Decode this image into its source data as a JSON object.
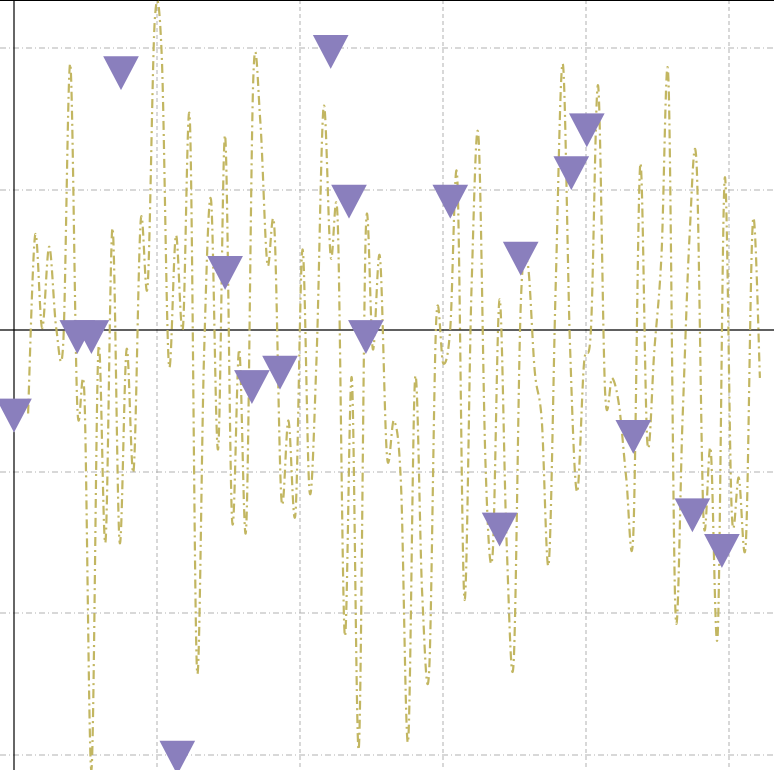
{
  "chart_data": {
    "type": "line",
    "title": "",
    "xlabel": "",
    "ylabel": "",
    "xlim": [
      -0.1,
      5.3
    ],
    "ylim": [
      -3.05,
      2.35
    ],
    "grid": true,
    "legend": "none",
    "series": [
      {
        "style": "dash-dot line",
        "color": "#c2b661",
        "x": [
          0,
          0.05,
          0.1,
          0.15,
          0.2,
          0.25,
          0.3,
          0.35,
          0.4,
          0.45,
          0.5,
          0.55,
          0.6,
          0.65,
          0.7,
          0.75,
          0.8,
          0.85,
          0.9,
          0.95,
          1.0,
          1.05,
          1.1,
          1.15,
          1.2,
          1.25,
          1.3,
          1.35,
          1.4,
          1.45,
          1.5,
          1.55,
          1.6,
          1.65,
          1.7,
          1.75,
          1.8,
          1.85,
          1.9,
          1.95,
          2.0,
          2.05,
          2.1,
          2.15,
          2.2,
          2.25,
          2.3,
          2.35,
          2.4,
          2.45,
          2.5,
          2.55,
          2.6,
          2.65,
          2.7,
          2.75,
          2.8,
          2.85,
          2.9,
          2.95,
          3.0,
          3.05,
          3.1,
          3.15,
          3.2,
          3.25,
          3.3,
          3.35,
          3.4,
          3.45,
          3.5,
          3.55,
          3.6,
          3.65,
          3.7,
          3.75,
          3.8,
          3.85,
          3.9,
          3.95,
          4.0,
          4.05,
          4.1,
          4.15,
          4.2,
          4.25,
          4.3,
          4.35,
          4.4,
          4.45,
          4.5,
          4.55,
          4.6,
          4.65,
          4.7,
          4.75,
          4.8,
          4.85,
          4.9,
          4.95,
          5.0,
          5.05,
          5.1,
          5.15,
          5.2
        ],
        "y": [
          -0.55,
          0.7,
          0.05,
          0.62,
          0.05,
          -0.05,
          1.9,
          -0.5,
          -0.42,
          -3.05,
          -0.1,
          -1.45,
          0.75,
          -1.45,
          -0.1,
          -0.95,
          0.8,
          0.35,
          2.2,
          1.95,
          -0.2,
          0.7,
          0.05,
          1.5,
          -2.35,
          -0.15,
          0.95,
          -0.8,
          1.4,
          -1.3,
          -0.1,
          -1.35,
          1.8,
          1.5,
          0.5,
          0.75,
          -1.15,
          -0.6,
          -1.25,
          0.6,
          -1.1,
          -0.15,
          1.6,
          0.55,
          0.8,
          -2.1,
          -0.3,
          -2.9,
          0.75,
          -0.1,
          0.55,
          -0.85,
          -0.6,
          -1.05,
          -2.85,
          -0.3,
          -1.8,
          -2.35,
          0.1,
          -0.2,
          0.05,
          1.1,
          -1.85,
          0.3,
          1.4,
          -0.9,
          -1.55,
          0.25,
          -1.45,
          -2.3,
          0.2,
          0.5,
          -0.25,
          -0.6,
          -1.6,
          0.4,
          1.9,
          -0.05,
          -1.1,
          -0.2,
          0.05,
          1.75,
          -0.4,
          -0.3,
          -0.5,
          -1.0,
          -1.4,
          1.2,
          -0.75,
          -0.1,
          0.55,
          1.8,
          -1.95,
          -0.6,
          0.7,
          1.2,
          -1.3,
          -0.8,
          -2.1,
          1.1,
          -1.25,
          -1.0,
          -1.45,
          0.8,
          -0.3
        ],
        "line_points_fine": true
      }
    ],
    "markers": {
      "style": "downward triangle",
      "color": "#8a7fbd",
      "points": [
        {
          "x": -0.1,
          "y": -0.55
        },
        {
          "x": 0.35,
          "y": 0.0
        },
        {
          "x": 0.45,
          "y": 0.0
        },
        {
          "x": 0.66,
          "y": 1.85
        },
        {
          "x": 1.06,
          "y": -2.95
        },
        {
          "x": 1.4,
          "y": 0.45
        },
        {
          "x": 1.59,
          "y": -0.35
        },
        {
          "x": 1.79,
          "y": -0.25
        },
        {
          "x": 2.15,
          "y": 2.0
        },
        {
          "x": 2.28,
          "y": 0.95
        },
        {
          "x": 2.4,
          "y": 0.0
        },
        {
          "x": 3.0,
          "y": 0.95
        },
        {
          "x": 3.35,
          "y": -1.35
        },
        {
          "x": 3.5,
          "y": 0.55
        },
        {
          "x": 3.86,
          "y": 1.15
        },
        {
          "x": 3.97,
          "y": 1.45
        },
        {
          "x": 4.3,
          "y": -0.7
        },
        {
          "x": 4.72,
          "y": -1.25
        },
        {
          "x": 4.93,
          "y": -1.5
        }
      ]
    }
  }
}
